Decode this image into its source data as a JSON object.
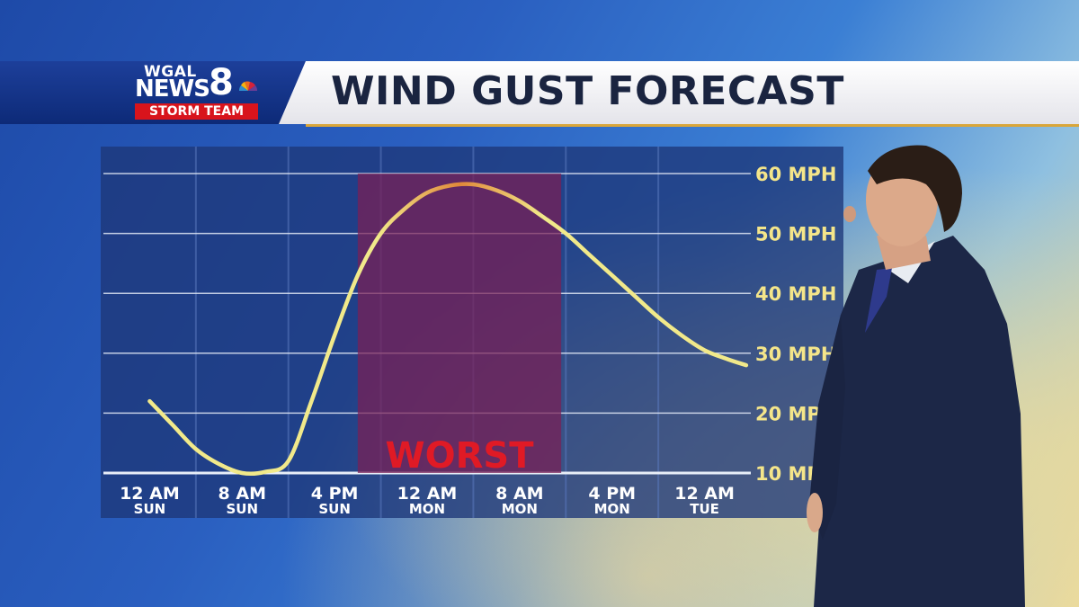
{
  "header": {
    "logo_wgal": "WGAL",
    "logo_news": "NEWS",
    "logo_8": "8",
    "logo_storm": "STORM TEAM",
    "title": "WIND GUST FORECAST"
  },
  "colors": {
    "curve_start": "#f1e98a",
    "curve_peak": "#e0883a",
    "worst_fill": "#7a1f55",
    "worst_text": "#e01a25",
    "axis_text": "#f4e58a",
    "tick_text": "#ffffff"
  },
  "chart_data": {
    "type": "line",
    "title": "WIND GUST FORECAST",
    "xlabel": "",
    "ylabel": "",
    "x_ticks": [
      {
        "time": "12 AM",
        "day": "SUN"
      },
      {
        "time": "8 AM",
        "day": "SUN"
      },
      {
        "time": "4 PM",
        "day": "SUN"
      },
      {
        "time": "12 AM",
        "day": "MON"
      },
      {
        "time": "8 AM",
        "day": "MON"
      },
      {
        "time": "4 PM",
        "day": "MON"
      },
      {
        "time": "12 AM",
        "day": "TUE"
      }
    ],
    "y_ticks": [
      "10 MPH",
      "20 MPH",
      "30 MPH",
      "40 MPH",
      "50 MPH",
      "60 MPH"
    ],
    "ylim": [
      10,
      60
    ],
    "grid": true,
    "highlight": {
      "label": "WORST",
      "x_start": 2.25,
      "x_end": 4.45
    },
    "series": [
      {
        "x": [
          0,
          0.25,
          0.5,
          0.75,
          1.0,
          1.25,
          1.5,
          1.75,
          2.0,
          2.25,
          2.5,
          2.75,
          3.0,
          3.25,
          3.5,
          3.75,
          4.0,
          4.25,
          4.5,
          4.75,
          5.0,
          5.25,
          5.5,
          5.75,
          6.0,
          6.25,
          6.45
        ],
        "y": [
          22,
          18,
          14,
          11.5,
          10,
          10.2,
          12,
          22,
          33,
          43,
          50,
          54,
          56.8,
          58,
          58.2,
          57.2,
          55.4,
          52.8,
          50,
          46.5,
          43,
          39.5,
          36,
          33,
          30.5,
          29,
          28
        ]
      }
    ]
  }
}
